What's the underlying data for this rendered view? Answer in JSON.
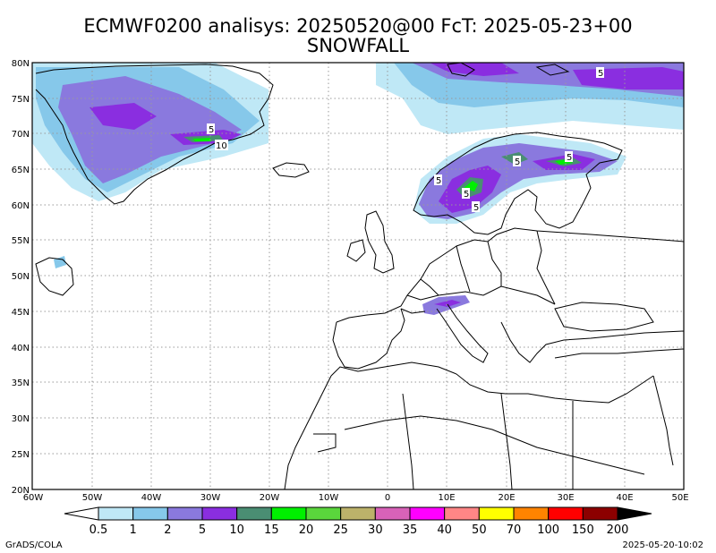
{
  "header": {
    "title_line1": "ECMWF0200 analisys: 20250520@00 FcT: 2025-05-23+00",
    "title_line2": "SNOWFALL"
  },
  "map": {
    "lat_labels": [
      "80N",
      "75N",
      "70N",
      "65N",
      "60N",
      "55N",
      "50N",
      "45N",
      "40N",
      "35N",
      "30N",
      "25N",
      "20N"
    ],
    "lon_labels": [
      "60W",
      "50W",
      "40W",
      "30W",
      "20W",
      "10W",
      "0",
      "10E",
      "20E",
      "30E",
      "40E",
      "50E"
    ],
    "contour_labels": [
      "5",
      "5",
      "10",
      "5",
      "5",
      "5",
      "5",
      "5"
    ]
  },
  "legend": {
    "levels": [
      "0.5",
      "1",
      "2",
      "5",
      "10",
      "15",
      "20",
      "25",
      "30",
      "35",
      "40",
      "50",
      "70",
      "100",
      "150",
      "200"
    ],
    "colors": [
      "#ffffff",
      "#bfe8f6",
      "#86c8ea",
      "#8a79de",
      "#8a2ee0",
      "#4a8e73",
      "#00f000",
      "#5ad63c",
      "#bcb26a",
      "#d862b8",
      "#ff00ff",
      "#ff8686",
      "#ffff00",
      "#ff8400",
      "#ff0000",
      "#8c0000",
      "#000000"
    ]
  },
  "footer": {
    "left": "GrADS/COLA",
    "right": "2025-05-20-10:02"
  }
}
